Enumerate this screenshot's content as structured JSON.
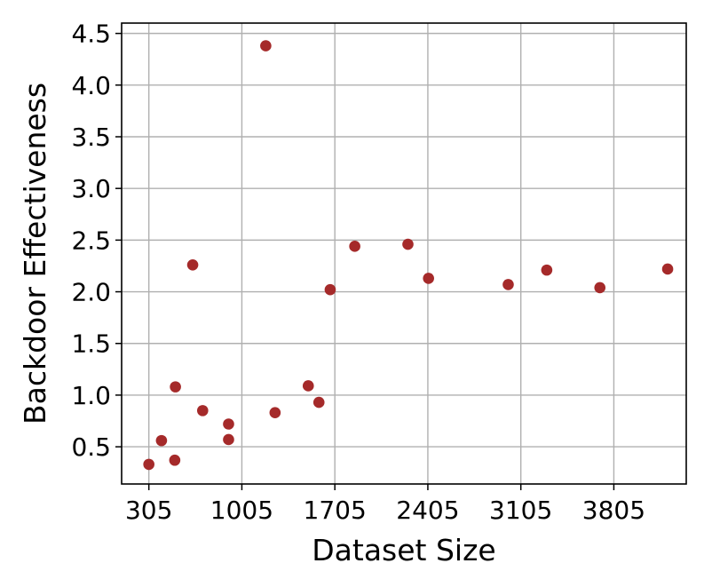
{
  "chart_data": {
    "type": "scatter",
    "title": "",
    "xlabel": "Dataset Size",
    "ylabel": "Backdoor Effectiveness",
    "xlim": [
      100,
      4350
    ],
    "ylim": [
      0.14,
      4.6
    ],
    "xticks": [
      305,
      1005,
      1705,
      2405,
      3105,
      3805
    ],
    "xtick_labels": [
      "305",
      "1005",
      "1705",
      "2405",
      "3105",
      "3805"
    ],
    "yticks": [
      0.5,
      1.0,
      1.5,
      2.0,
      2.5,
      3.0,
      3.5,
      4.0,
      4.5
    ],
    "ytick_labels": [
      "0.5",
      "1.0",
      "1.5",
      "2.0",
      "2.5",
      "3.0",
      "3.5",
      "4.0",
      "4.5"
    ],
    "grid": true,
    "legend": "none",
    "marker_color": "#a52a2a",
    "points": [
      {
        "x": 305,
        "y": 0.33
      },
      {
        "x": 400,
        "y": 0.56
      },
      {
        "x": 500,
        "y": 0.37
      },
      {
        "x": 505,
        "y": 1.08
      },
      {
        "x": 635,
        "y": 2.26
      },
      {
        "x": 710,
        "y": 0.85
      },
      {
        "x": 905,
        "y": 0.72
      },
      {
        "x": 905,
        "y": 0.57
      },
      {
        "x": 1185,
        "y": 4.38
      },
      {
        "x": 1255,
        "y": 0.83
      },
      {
        "x": 1505,
        "y": 1.09
      },
      {
        "x": 1585,
        "y": 0.93
      },
      {
        "x": 1670,
        "y": 2.02
      },
      {
        "x": 1855,
        "y": 2.44
      },
      {
        "x": 2255,
        "y": 2.46
      },
      {
        "x": 2410,
        "y": 2.13
      },
      {
        "x": 3010,
        "y": 2.07
      },
      {
        "x": 3300,
        "y": 2.21
      },
      {
        "x": 3700,
        "y": 2.04
      },
      {
        "x": 4210,
        "y": 2.22
      }
    ]
  }
}
